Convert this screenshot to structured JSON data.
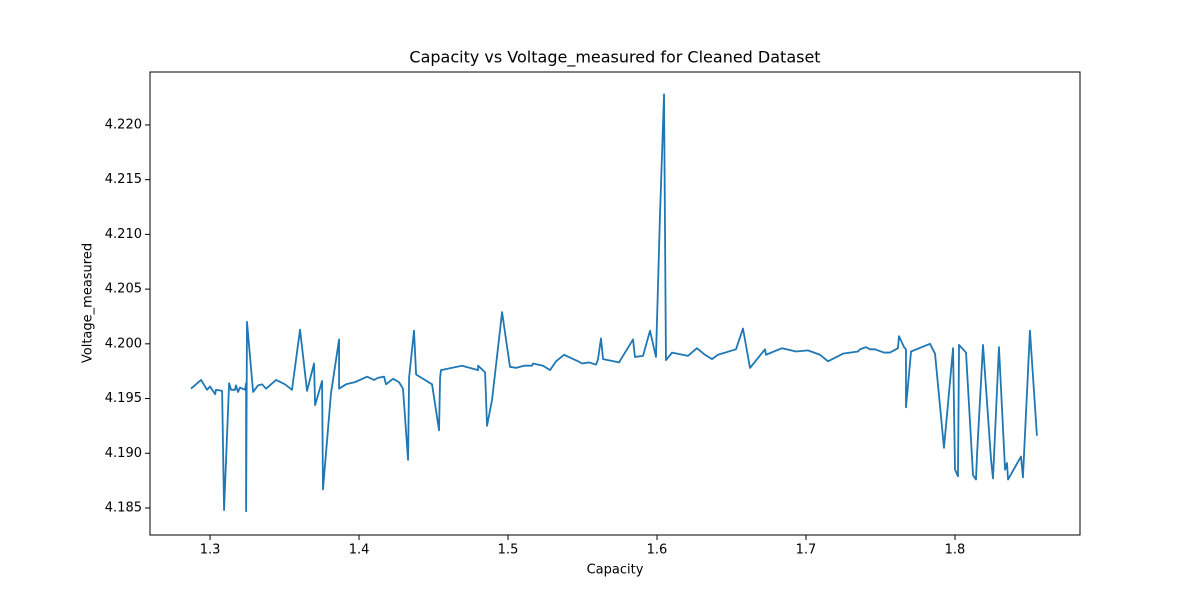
{
  "chart_data": {
    "type": "line",
    "title": "Capacity vs Voltage_measured for Cleaned Dataset",
    "x_label": "Capacity",
    "y_label": "Voltage_measured",
    "color": "#1f77b4",
    "x": [
      1.2872,
      1.294,
      1.298,
      1.3,
      1.3034,
      1.304,
      1.3081,
      1.3094,
      1.3128,
      1.3141,
      1.3168,
      1.3174,
      1.3188,
      1.3201,
      1.3235,
      1.3242,
      1.3242,
      1.3248,
      1.3289,
      1.3322,
      1.3349,
      1.3376,
      1.3443,
      1.3503,
      1.355,
      1.3604,
      1.3651,
      1.3698,
      1.3705,
      1.3752,
      1.3758,
      1.3812,
      1.3866,
      1.3866,
      1.3913,
      1.3973,
      1.4054,
      1.4101,
      1.4128,
      1.4168,
      1.4181,
      1.4228,
      1.4268,
      1.4295,
      1.4329,
      1.4336,
      1.4369,
      1.4383,
      1.449,
      1.4537,
      1.4544,
      1.455,
      1.4691,
      1.4799,
      1.4799,
      1.4846,
      1.4859,
      1.4893,
      1.496,
      1.5013,
      1.5054,
      1.5107,
      1.5161,
      1.5168,
      1.5235,
      1.5282,
      1.5322,
      1.5376,
      1.547,
      1.5497,
      1.5544,
      1.5591,
      1.5604,
      1.5624,
      1.5638,
      1.5745,
      1.5839,
      1.5852,
      1.5906,
      1.5953,
      1.5993,
      1.602,
      1.6047,
      1.606,
      1.6101,
      1.6208,
      1.6268,
      1.6322,
      1.6369,
      1.6409,
      1.653,
      1.6577,
      1.6624,
      1.6725,
      1.6731,
      1.6839,
      1.6933,
      1.7013,
      1.7094,
      1.7148,
      1.7248,
      1.7349,
      1.7362,
      1.7403,
      1.743,
      1.7463,
      1.7523,
      1.7564,
      1.7617,
      1.7624,
      1.7658,
      1.7671,
      1.7671,
      1.7705,
      1.7832,
      1.7866,
      1.7926,
      1.7987,
      1.8,
      1.802,
      1.8027,
      1.8074,
      1.8121,
      1.8141,
      1.8148,
      1.8188,
      1.8242,
      1.8255,
      1.8295,
      1.8336,
      1.8349,
      1.8356,
      1.8443,
      1.8456,
      1.8503,
      1.855
    ],
    "values": [
      4.1959,
      4.1967,
      4.1958,
      4.1961,
      4.1954,
      4.1958,
      4.1957,
      4.1848,
      4.1964,
      4.1958,
      4.1958,
      4.1962,
      4.1956,
      4.196,
      4.1958,
      4.1964,
      4.1847,
      4.202,
      4.1956,
      4.1962,
      4.1963,
      4.1959,
      4.1967,
      4.1963,
      4.1958,
      4.2013,
      4.1957,
      4.1982,
      4.1944,
      4.1966,
      4.1867,
      4.1955,
      4.2004,
      4.1959,
      4.1963,
      4.1965,
      4.197,
      4.1967,
      4.1969,
      4.197,
      4.1963,
      4.1968,
      4.1965,
      4.1959,
      4.1894,
      4.1969,
      4.2012,
      4.1972,
      4.1963,
      4.1921,
      4.1969,
      4.1976,
      4.198,
      4.1976,
      4.198,
      4.1974,
      4.1925,
      4.1949,
      4.2029,
      4.1979,
      4.1978,
      4.198,
      4.198,
      4.1982,
      4.198,
      4.1976,
      4.1984,
      4.199,
      4.1984,
      4.1982,
      4.1983,
      4.1981,
      4.1986,
      4.2005,
      4.1986,
      4.1983,
      4.2004,
      4.1988,
      4.1989,
      4.2012,
      4.1988,
      4.2118,
      4.2228,
      4.1985,
      4.1992,
      4.1989,
      4.1996,
      4.199,
      4.1986,
      4.199,
      4.1995,
      4.2014,
      4.1978,
      4.1995,
      4.199,
      4.1996,
      4.1993,
      4.1994,
      4.199,
      4.1984,
      4.1991,
      4.1993,
      4.1995,
      4.1997,
      4.1995,
      4.1995,
      4.1992,
      4.1992,
      4.1996,
      4.2007,
      4.1997,
      4.1995,
      4.1942,
      4.1993,
      4.2,
      4.1991,
      4.1905,
      4.1996,
      4.1885,
      4.1879,
      4.1999,
      4.1992,
      4.188,
      4.1876,
      4.1899,
      4.1999,
      4.1894,
      4.1877,
      4.1997,
      4.1885,
      4.1891,
      4.1876,
      4.1897,
      4.1878,
      4.2012,
      4.1916
    ],
    "xlim": [
      1.2597,
      1.8839
    ],
    "ylim": [
      4.18253,
      4.22484
    ],
    "xticks": [
      1.3,
      1.4,
      1.5,
      1.6,
      1.7,
      1.8
    ],
    "yticks": [
      4.185,
      {
        "value": 4.19,
        "label": "4.190"
      },
      4.195,
      {
        "value": 4.2,
        "label": "4.200"
      },
      4.205,
      {
        "value": 4.21,
        "label": "4.210"
      },
      4.215,
      {
        "value": 4.22,
        "label": "4.220"
      }
    ],
    "grid": false
  }
}
